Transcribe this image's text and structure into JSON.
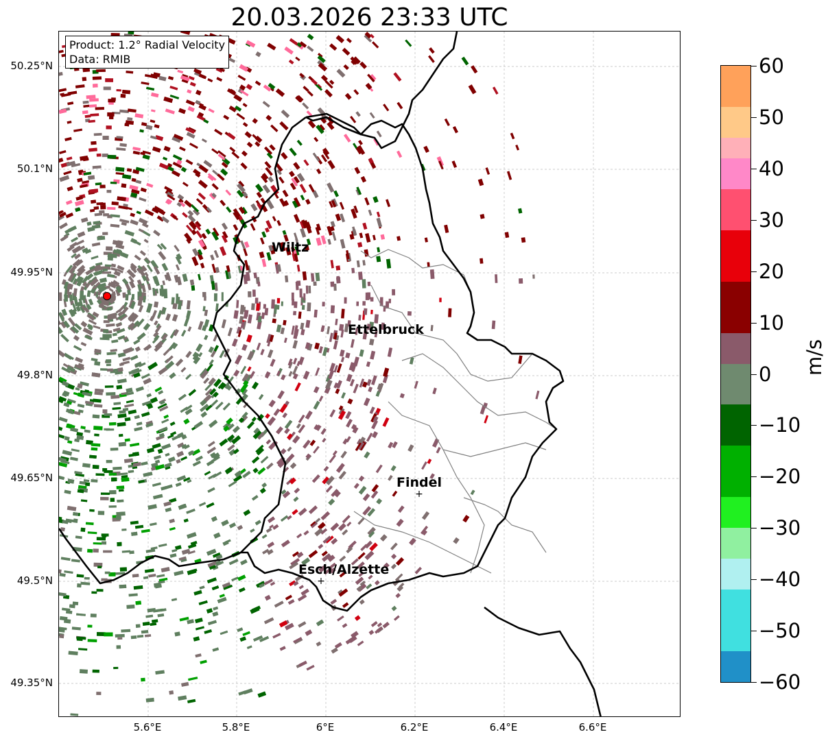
{
  "title": "20.03.2026 23:33 UTC",
  "info": {
    "product": "Product: 1.2° Radial Velocity",
    "data_source": "Data: RMIB"
  },
  "lat_ticks": [
    "50.25°N",
    "50.1°N",
    "49.95°N",
    "49.8°N",
    "49.65°N",
    "49.5°N",
    "49.35°N"
  ],
  "lon_ticks": [
    "5.6°E",
    "5.8°E",
    "6°E",
    "6.2°E",
    "6.4°E",
    "6.6°E"
  ],
  "cities": [
    {
      "name": "Wiltz"
    },
    {
      "name": "Ettelbruck"
    },
    {
      "name": "Findel"
    },
    {
      "name": "Esch/Alzette"
    }
  ],
  "colorbar": {
    "unit": "m/s",
    "min": -60,
    "max": 60,
    "tick_labels": [
      "60",
      "50",
      "40",
      "30",
      "20",
      "10",
      "0",
      "−10",
      "−20",
      "−30",
      "−40",
      "−50",
      "−60"
    ],
    "tick_values": [
      60,
      50,
      40,
      30,
      20,
      10,
      0,
      -10,
      -20,
      -30,
      -40,
      -50,
      -60
    ],
    "bands": [
      {
        "from": 52,
        "to": 60,
        "color": "#ffa15a"
      },
      {
        "from": 46,
        "to": 52,
        "color": "#ffc988"
      },
      {
        "from": 42,
        "to": 46,
        "color": "#ffb0b8"
      },
      {
        "from": 36,
        "to": 42,
        "color": "#ff88c8"
      },
      {
        "from": 28,
        "to": 36,
        "color": "#ff5070"
      },
      {
        "from": 18,
        "to": 28,
        "color": "#e8000a"
      },
      {
        "from": 8,
        "to": 18,
        "color": "#8a0000"
      },
      {
        "from": 2,
        "to": 8,
        "color": "#8a5a6a"
      },
      {
        "from": -6,
        "to": 2,
        "color": "#6f8a6f"
      },
      {
        "from": -14,
        "to": -6,
        "color": "#006400"
      },
      {
        "from": -24,
        "to": -14,
        "color": "#00b000"
      },
      {
        "from": -30,
        "to": -24,
        "color": "#20f020"
      },
      {
        "from": -36,
        "to": -30,
        "color": "#90f0a0"
      },
      {
        "from": -42,
        "to": -36,
        "color": "#b0f0f0"
      },
      {
        "from": -54,
        "to": -42,
        "color": "#40e0e0"
      },
      {
        "from": -60,
        "to": -54,
        "color": "#2090c8"
      }
    ]
  },
  "radar_site": {
    "color": "#ff0000"
  },
  "colors": {
    "inbound_strong": "#006400",
    "inbound_weak": "#5f7f5f",
    "neutral": "#7f6f6f",
    "outbound_weak": "#8a5a6a",
    "outbound_strong": "#800000",
    "outbound_pink": "#ff6a9a",
    "border": "#000000",
    "canton_border": "#808080",
    "grid": "#bbbbbb"
  }
}
